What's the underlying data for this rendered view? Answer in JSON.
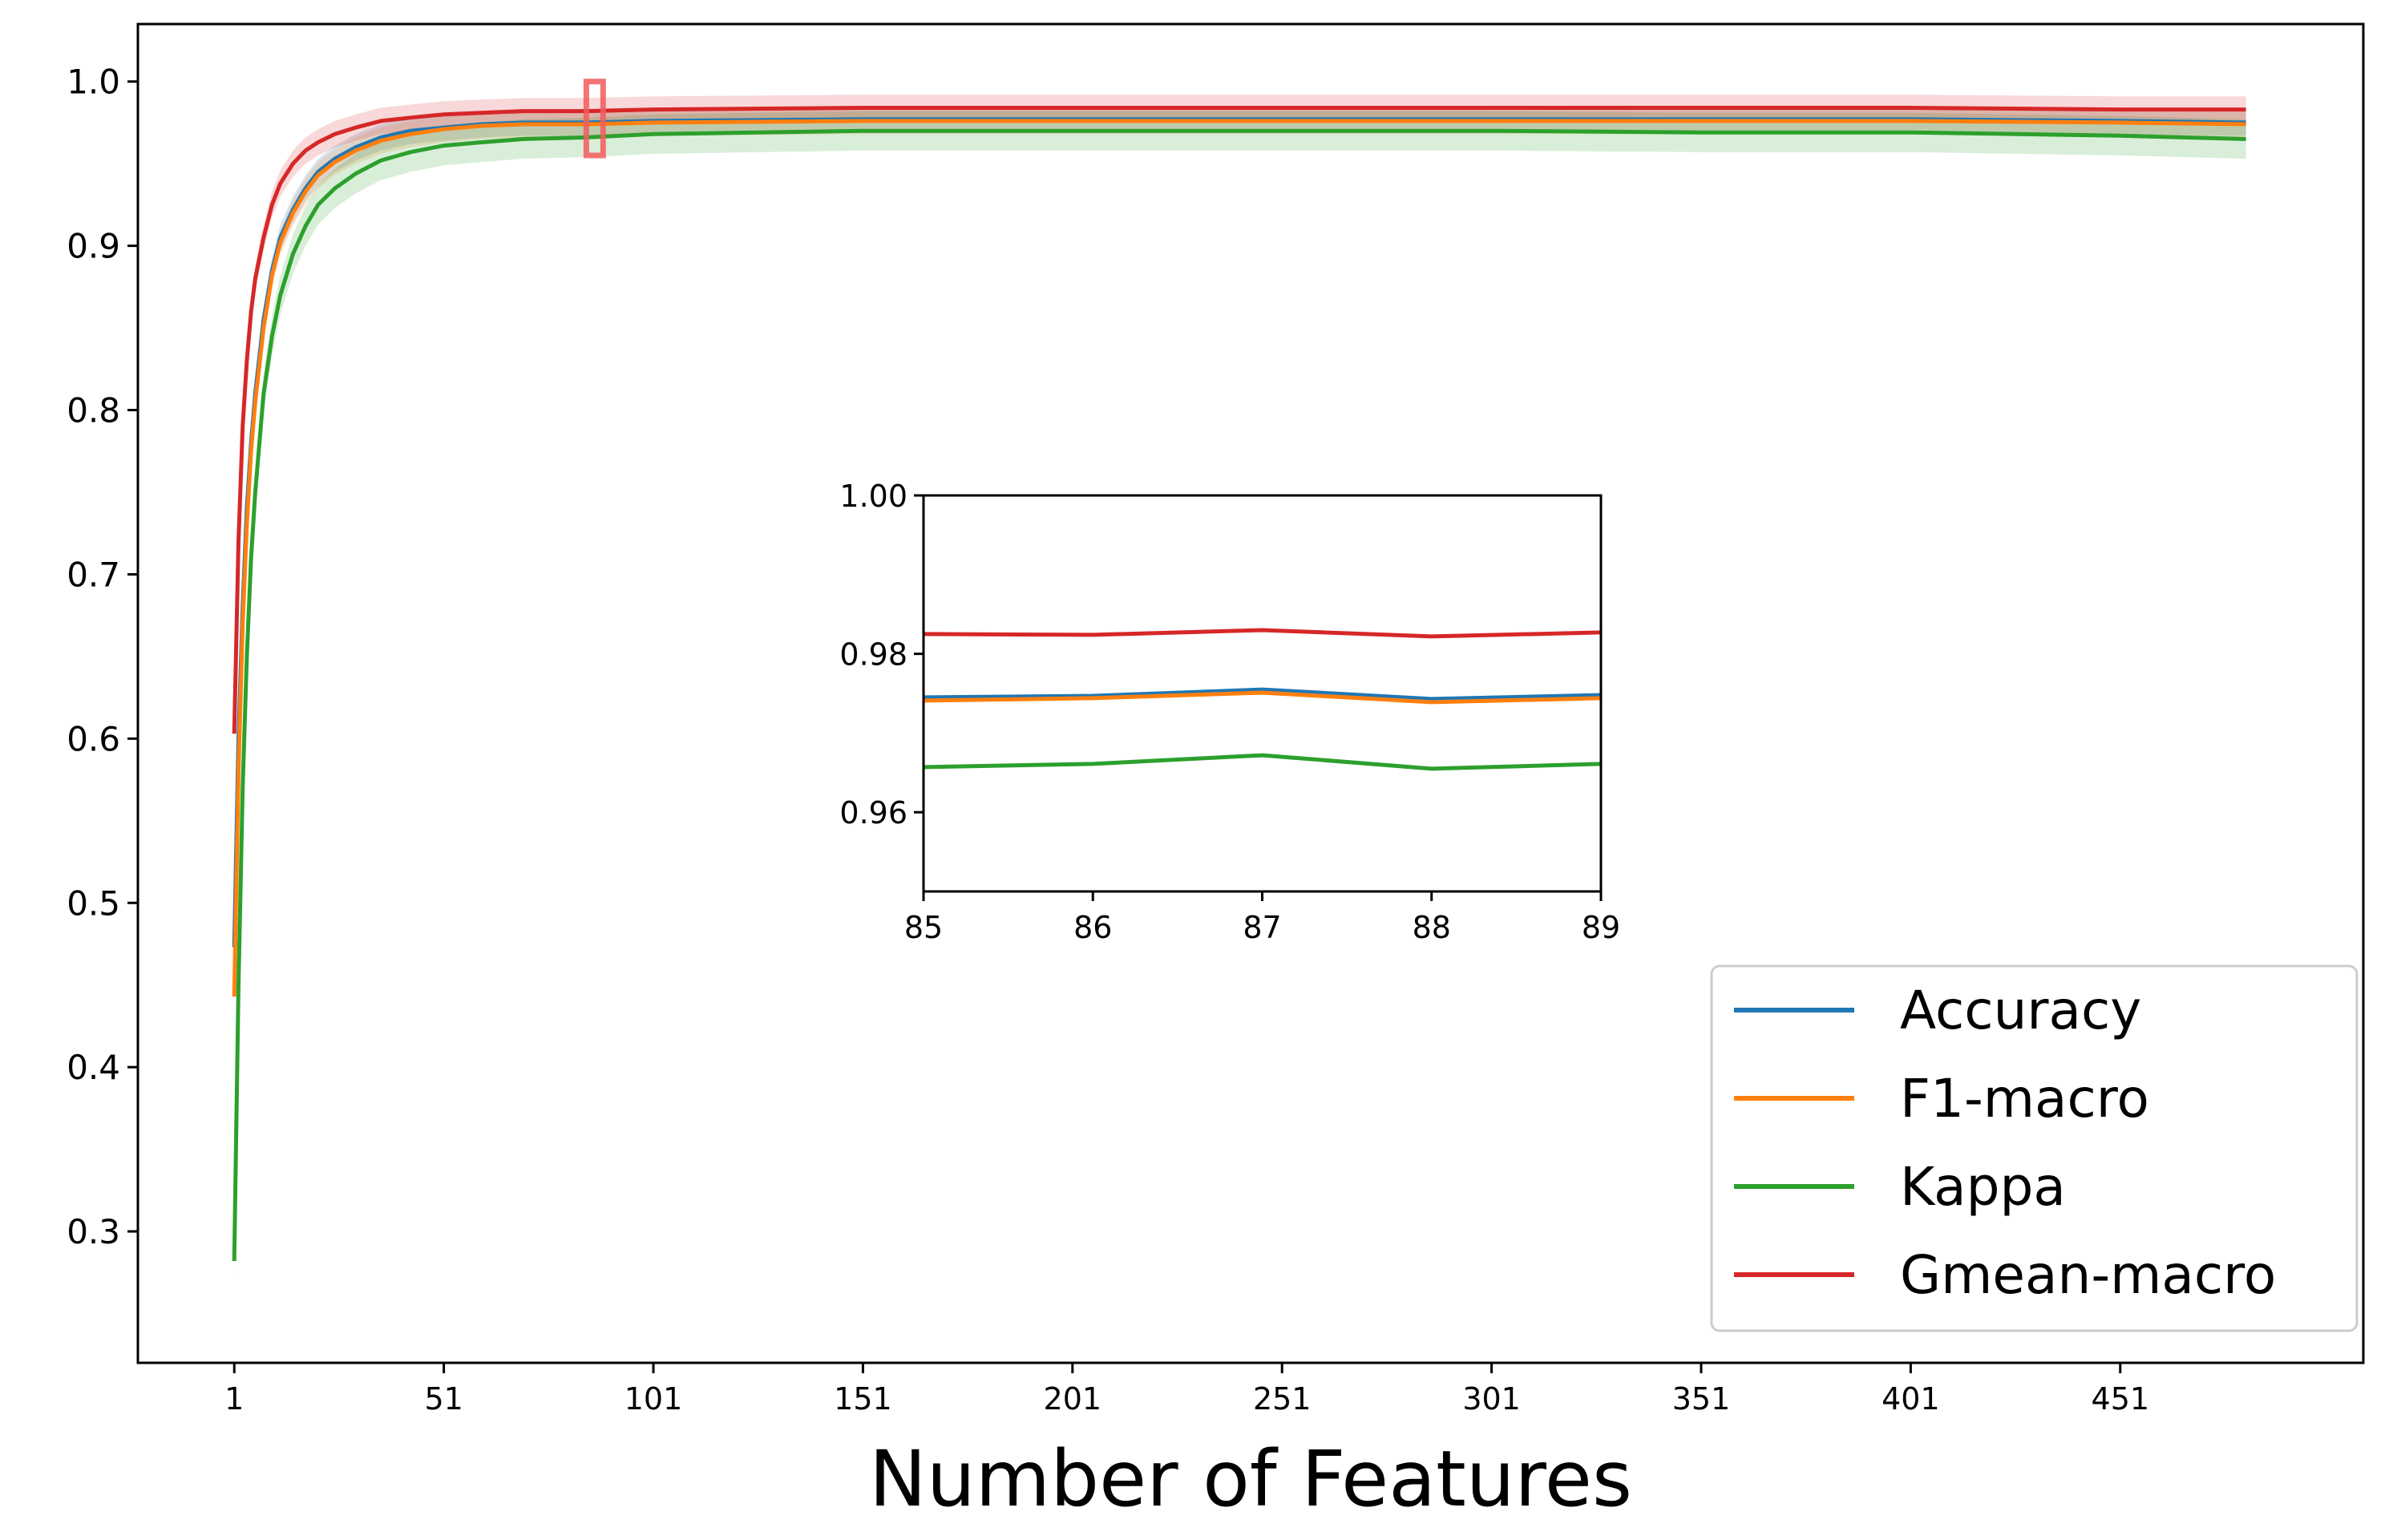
{
  "chart_data": [
    {
      "type": "line",
      "role": "main",
      "xlabel": "Number of Features",
      "ylabel": "",
      "xlim": [
        -22,
        509
      ],
      "ylim": [
        0.22,
        1.035
      ],
      "xticks": [
        1,
        51,
        101,
        151,
        201,
        251,
        301,
        351,
        401,
        451
      ],
      "yticks": [
        0.3,
        0.4,
        0.5,
        0.6,
        0.7,
        0.8,
        0.9,
        1.0
      ],
      "ytick_labels": [
        "0.3",
        "0.4",
        "0.5",
        "0.6",
        "0.7",
        "0.8",
        "0.9",
        "1.0"
      ],
      "x": [
        1,
        2,
        3,
        4,
        5,
        6,
        8,
        10,
        12,
        15,
        18,
        21,
        25,
        30,
        36,
        43,
        51,
        60,
        70,
        85,
        101,
        151,
        201,
        251,
        301,
        351,
        401,
        451,
        481
      ],
      "series": [
        {
          "name": "Accuracy",
          "color": "#1f77b4",
          "band": 0.008,
          "values": [
            0.473,
            0.6,
            0.68,
            0.74,
            0.78,
            0.81,
            0.855,
            0.885,
            0.905,
            0.922,
            0.935,
            0.945,
            0.953,
            0.96,
            0.966,
            0.97,
            0.972,
            0.974,
            0.975,
            0.975,
            0.976,
            0.977,
            0.977,
            0.977,
            0.977,
            0.977,
            0.977,
            0.976,
            0.975
          ]
        },
        {
          "name": "F1-macro",
          "color": "#ff7f0e",
          "band": 0.008,
          "values": [
            0.443,
            0.58,
            0.67,
            0.73,
            0.775,
            0.805,
            0.85,
            0.882,
            0.902,
            0.92,
            0.933,
            0.943,
            0.951,
            0.958,
            0.964,
            0.968,
            0.971,
            0.973,
            0.974,
            0.974,
            0.975,
            0.976,
            0.976,
            0.976,
            0.976,
            0.976,
            0.976,
            0.975,
            0.974
          ]
        },
        {
          "name": "Kappa",
          "color": "#2ca02c",
          "band": 0.012,
          "values": [
            0.282,
            0.45,
            0.57,
            0.65,
            0.71,
            0.75,
            0.81,
            0.845,
            0.87,
            0.895,
            0.912,
            0.925,
            0.935,
            0.944,
            0.952,
            0.957,
            0.961,
            0.963,
            0.965,
            0.966,
            0.968,
            0.97,
            0.97,
            0.97,
            0.97,
            0.969,
            0.969,
            0.967,
            0.965
          ]
        },
        {
          "name": "Gmean-macro",
          "color": "#d62728",
          "band": 0.008,
          "values": [
            0.603,
            0.72,
            0.79,
            0.83,
            0.86,
            0.88,
            0.905,
            0.925,
            0.938,
            0.95,
            0.958,
            0.963,
            0.968,
            0.972,
            0.976,
            0.978,
            0.98,
            0.981,
            0.982,
            0.982,
            0.983,
            0.984,
            0.984,
            0.984,
            0.984,
            0.984,
            0.984,
            0.983,
            0.983
          ]
        }
      ],
      "highlight": {
        "x": [
          85,
          89
        ],
        "y": [
          0.955,
          1.0
        ],
        "color": "#f25c5c"
      },
      "legend_position": "lower right",
      "grid": false
    },
    {
      "type": "line",
      "role": "inset",
      "xlabel": "",
      "ylabel": "",
      "xlim": [
        85,
        89
      ],
      "ylim": [
        0.95,
        1.0
      ],
      "xticks": [
        85,
        86,
        87,
        88,
        89
      ],
      "yticks": [
        0.96,
        0.98,
        1.0
      ],
      "ytick_labels": [
        "0.96",
        "0.98",
        "1.00"
      ],
      "x": [
        85,
        86,
        87,
        88,
        89
      ],
      "series": [
        {
          "name": "Accuracy",
          "color": "#1f77b4",
          "values": [
            0.9745,
            0.9747,
            0.9755,
            0.9743,
            0.9748
          ]
        },
        {
          "name": "F1-macro",
          "color": "#ff7f0e",
          "values": [
            0.9741,
            0.9744,
            0.9751,
            0.9739,
            0.9744
          ]
        },
        {
          "name": "Kappa",
          "color": "#2ca02c",
          "values": [
            0.9657,
            0.9661,
            0.9672,
            0.9655,
            0.9661
          ]
        },
        {
          "name": "Gmean-macro",
          "color": "#d62728",
          "values": [
            0.9825,
            0.9824,
            0.983,
            0.9822,
            0.9827
          ]
        }
      ],
      "grid": false
    }
  ]
}
